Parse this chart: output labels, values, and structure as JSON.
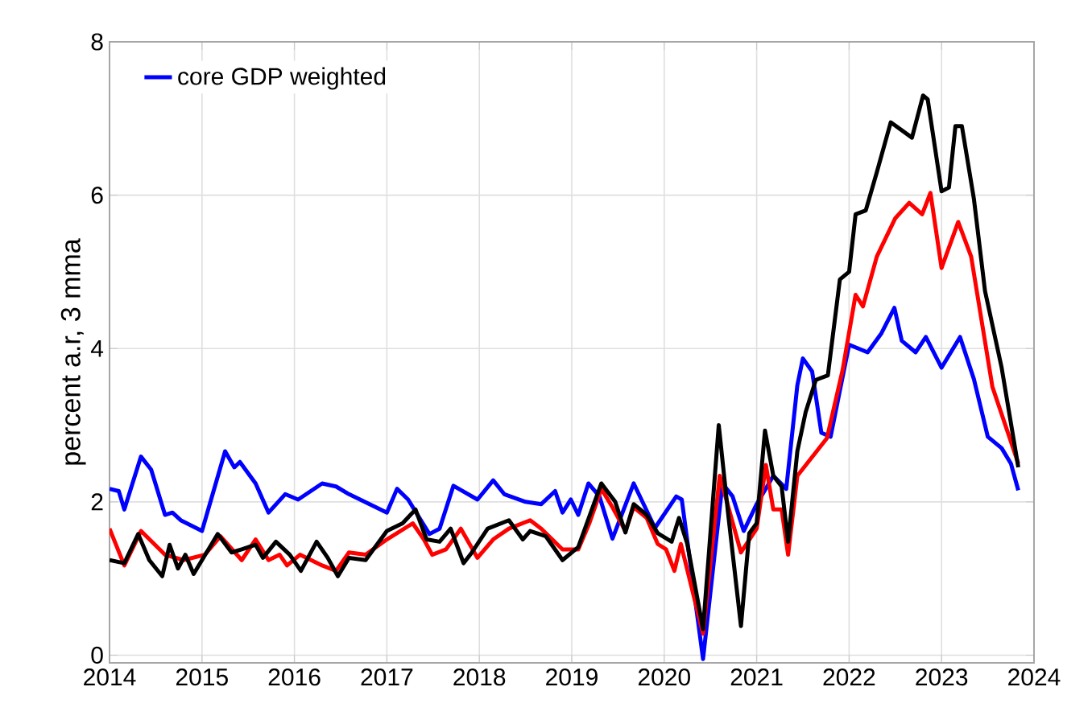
{
  "chart_data": {
    "type": "line",
    "ylabel": "percent a.r, 3 mma",
    "xlim": [
      2014,
      2024
    ],
    "ylim": [
      -0.1,
      8
    ],
    "xticks": [
      2014,
      2015,
      2016,
      2017,
      2018,
      2019,
      2020,
      2021,
      2022,
      2023,
      2024
    ],
    "yticks": [
      0,
      2,
      4,
      6,
      8
    ],
    "grid": true,
    "legend": "top left",
    "marker": "none",
    "line_style": "solid",
    "series": [
      {
        "name": "core GDP weighted",
        "color": "#0000ff",
        "x": [
          2014.0,
          2014.1,
          2014.16,
          2014.34,
          2014.45,
          2014.6,
          2014.68,
          2014.77,
          2015.0,
          2015.25,
          2015.35,
          2015.41,
          2015.58,
          2015.72,
          2015.9,
          2016.04,
          2016.3,
          2016.45,
          2016.59,
          2016.88,
          2017.0,
          2017.11,
          2017.23,
          2017.46,
          2017.57,
          2017.72,
          2017.98,
          2018.15,
          2018.27,
          2018.5,
          2018.67,
          2018.82,
          2018.9,
          2018.99,
          2019.07,
          2019.18,
          2019.3,
          2019.44,
          2019.53,
          2019.67,
          2019.9,
          2020.13,
          2020.19,
          2020.42,
          2020.63,
          2020.74,
          2020.86,
          2021.0,
          2021.18,
          2021.32,
          2021.44,
          2021.5,
          2021.6,
          2021.7,
          2021.8,
          2022.0,
          2022.2,
          2022.35,
          2022.49,
          2022.57,
          2022.72,
          2022.83,
          2023.0,
          2023.2,
          2023.35,
          2023.5,
          2023.65,
          2023.75,
          2023.83
        ],
        "values": [
          2.17,
          2.14,
          1.9,
          2.59,
          2.42,
          1.83,
          1.86,
          1.76,
          1.62,
          2.66,
          2.45,
          2.52,
          2.24,
          1.86,
          2.1,
          2.03,
          2.24,
          2.2,
          2.1,
          1.93,
          1.86,
          2.17,
          2.03,
          1.58,
          1.65,
          2.21,
          2.03,
          2.28,
          2.1,
          2.0,
          1.97,
          2.14,
          1.86,
          2.03,
          1.83,
          2.24,
          2.07,
          1.52,
          1.8,
          2.24,
          1.66,
          2.07,
          2.03,
          -0.05,
          2.24,
          2.07,
          1.62,
          1.97,
          2.34,
          2.17,
          3.52,
          3.87,
          3.7,
          2.9,
          2.85,
          4.05,
          3.95,
          4.2,
          4.53,
          4.1,
          3.95,
          4.15,
          3.75,
          4.15,
          3.6,
          2.85,
          2.7,
          2.5,
          2.15
        ]
      },
      {
        "color": "#ff0000",
        "x": [
          2014.0,
          2014.16,
          2014.34,
          2014.6,
          2014.8,
          2015.03,
          2015.2,
          2015.43,
          2015.58,
          2015.72,
          2015.84,
          2015.92,
          2016.06,
          2016.3,
          2016.45,
          2016.59,
          2016.77,
          2017.0,
          2017.28,
          2017.4,
          2017.49,
          2017.64,
          2017.8,
          2017.98,
          2018.15,
          2018.32,
          2018.55,
          2018.67,
          2018.9,
          2019.07,
          2019.19,
          2019.32,
          2019.44,
          2019.58,
          2019.67,
          2019.81,
          2019.93,
          2020.02,
          2020.11,
          2020.18,
          2020.42,
          2020.6,
          2020.83,
          2021.0,
          2021.1,
          2021.18,
          2021.27,
          2021.34,
          2021.44,
          2021.76,
          2021.93,
          2022.07,
          2022.15,
          2022.3,
          2022.5,
          2022.65,
          2022.79,
          2022.88,
          2023.0,
          2023.18,
          2023.32,
          2023.55,
          2023.83
        ],
        "values": [
          1.65,
          1.17,
          1.62,
          1.31,
          1.24,
          1.31,
          1.55,
          1.24,
          1.51,
          1.24,
          1.31,
          1.17,
          1.31,
          1.17,
          1.1,
          1.34,
          1.31,
          1.51,
          1.72,
          1.51,
          1.31,
          1.38,
          1.65,
          1.27,
          1.51,
          1.65,
          1.76,
          1.65,
          1.38,
          1.38,
          1.72,
          2.17,
          1.93,
          1.62,
          1.93,
          1.79,
          1.45,
          1.38,
          1.1,
          1.45,
          0.28,
          2.34,
          1.34,
          1.65,
          2.48,
          1.9,
          1.9,
          1.31,
          2.34,
          2.83,
          3.72,
          4.7,
          4.55,
          5.2,
          5.7,
          5.9,
          5.75,
          6.03,
          5.05,
          5.65,
          5.2,
          3.5,
          2.5
        ]
      },
      {
        "color": "#000000",
        "x": [
          2014.0,
          2014.16,
          2014.31,
          2014.43,
          2014.57,
          2014.65,
          2014.74,
          2014.82,
          2014.91,
          2015.17,
          2015.32,
          2015.43,
          2015.58,
          2015.66,
          2015.8,
          2015.95,
          2016.07,
          2016.24,
          2016.36,
          2016.47,
          2016.59,
          2016.77,
          2017.0,
          2017.17,
          2017.31,
          2017.43,
          2017.57,
          2017.69,
          2017.83,
          2017.92,
          2018.09,
          2018.32,
          2018.47,
          2018.55,
          2018.72,
          2018.9,
          2019.07,
          2019.32,
          2019.47,
          2019.58,
          2019.67,
          2019.81,
          2019.93,
          2020.08,
          2020.16,
          2020.25,
          2020.42,
          2020.59,
          2020.69,
          2020.83,
          2020.92,
          2021.0,
          2021.09,
          2021.18,
          2021.27,
          2021.34,
          2021.44,
          2021.53,
          2021.64,
          2021.77,
          2021.9,
          2022.0,
          2022.07,
          2022.18,
          2022.3,
          2022.45,
          2022.68,
          2022.8,
          2022.85,
          2023.0,
          2023.08,
          2023.15,
          2023.22,
          2023.35,
          2023.47,
          2023.65,
          2023.83
        ],
        "values": [
          1.24,
          1.2,
          1.58,
          1.24,
          1.03,
          1.44,
          1.13,
          1.31,
          1.06,
          1.58,
          1.34,
          1.38,
          1.44,
          1.27,
          1.48,
          1.31,
          1.1,
          1.48,
          1.27,
          1.03,
          1.27,
          1.24,
          1.62,
          1.72,
          1.9,
          1.51,
          1.48,
          1.65,
          1.2,
          1.34,
          1.65,
          1.76,
          1.51,
          1.62,
          1.55,
          1.24,
          1.41,
          2.24,
          2.0,
          1.6,
          1.97,
          1.83,
          1.59,
          1.48,
          1.79,
          1.45,
          0.34,
          3.0,
          1.86,
          0.38,
          1.59,
          1.72,
          2.93,
          2.34,
          2.2,
          1.48,
          2.66,
          3.17,
          3.59,
          3.65,
          4.9,
          5.0,
          5.75,
          5.8,
          6.3,
          6.95,
          6.75,
          7.3,
          7.25,
          6.05,
          6.1,
          6.9,
          6.9,
          5.95,
          4.75,
          3.75,
          2.45
        ]
      }
    ]
  }
}
